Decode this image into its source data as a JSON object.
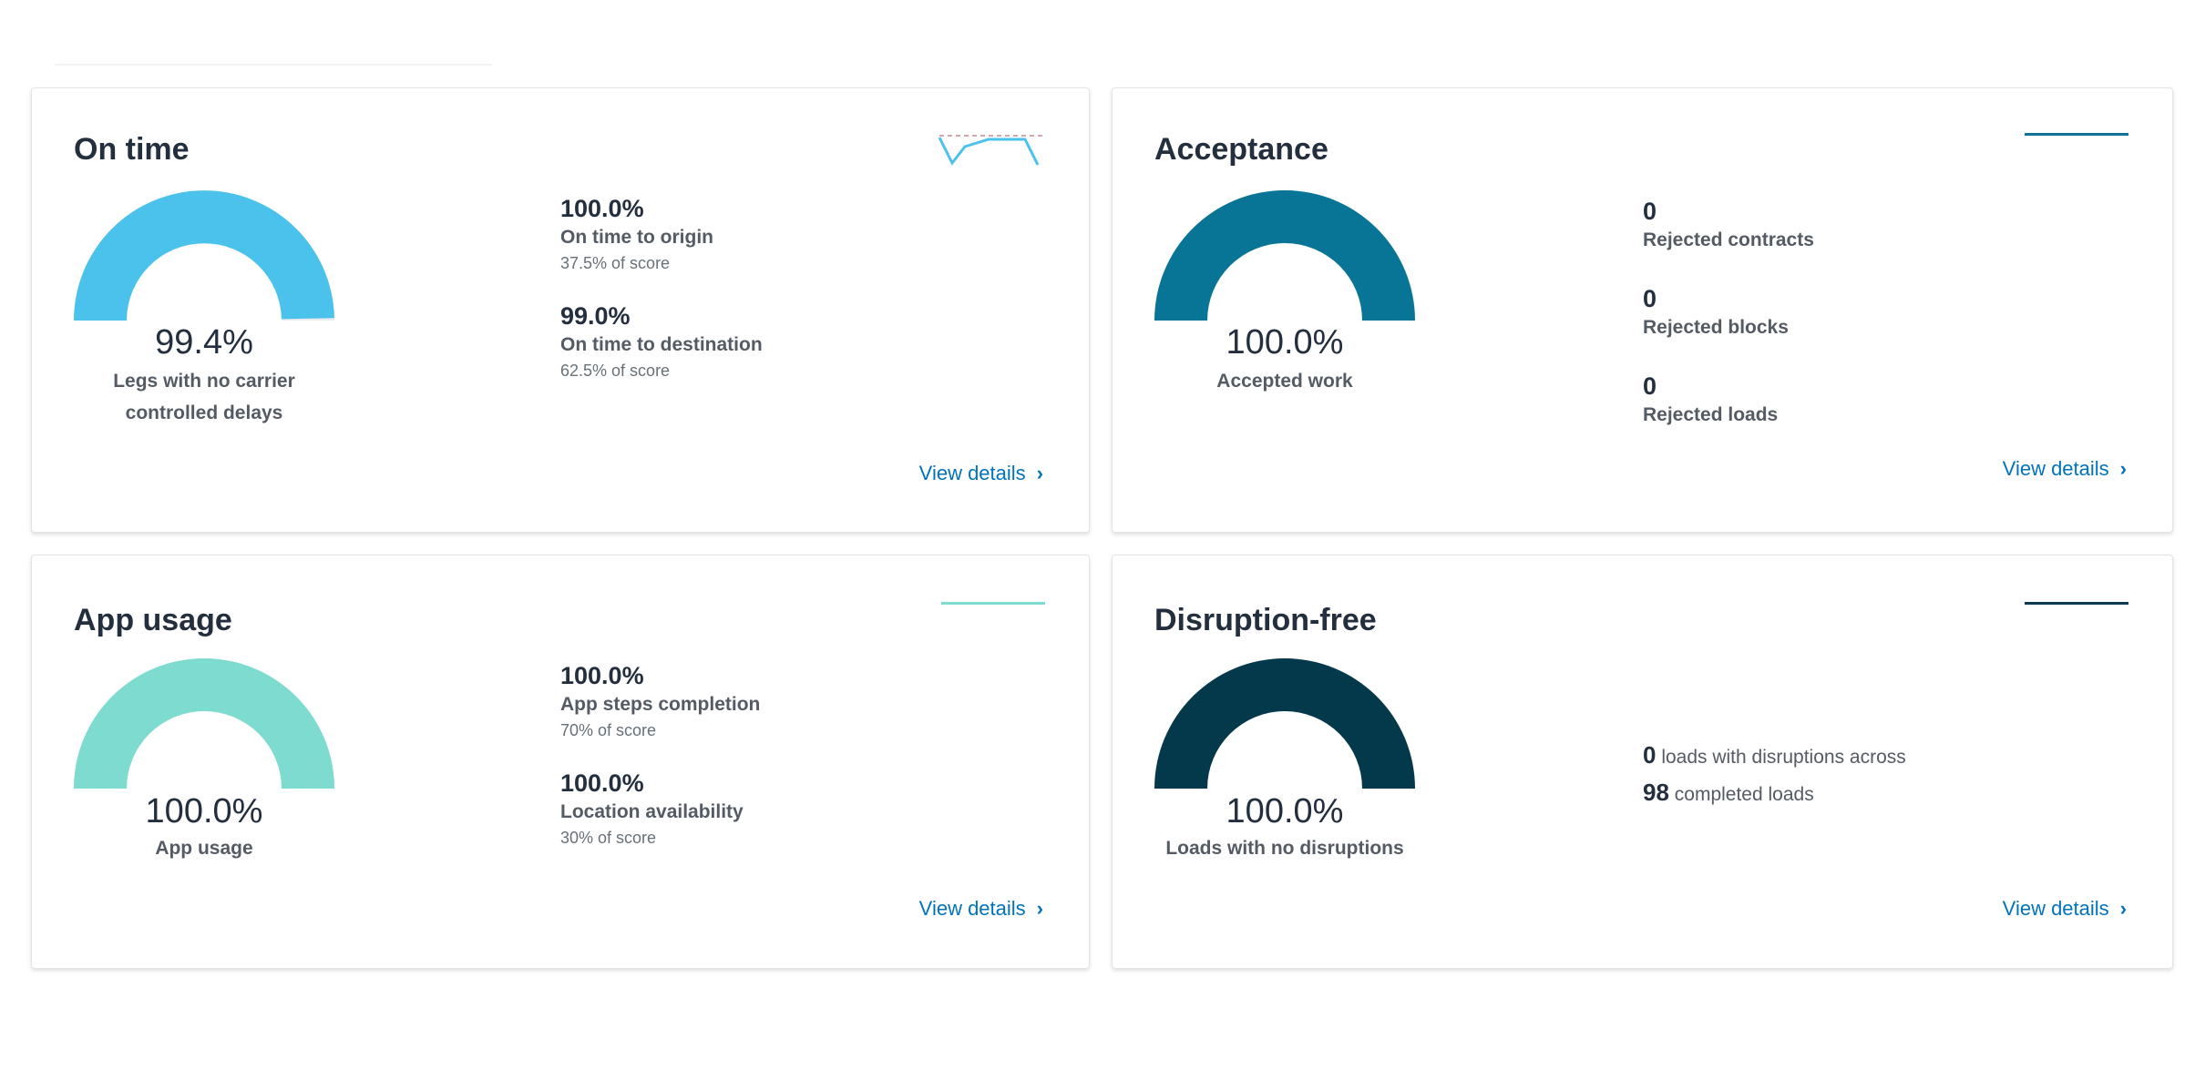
{
  "colors": {
    "on_time": "#4bc2ec",
    "acceptance": "#087596",
    "app_usage": "#7ddbcf",
    "disruption_free": "#03394a",
    "link": "#0073bb"
  },
  "cards": {
    "on_time": {
      "title": "On time",
      "gauge_value": "99.4%",
      "gauge_fraction": 0.994,
      "gauge_label": "Legs with no carrier controlled delays",
      "metrics": [
        {
          "value": "100.0%",
          "label": "On time to origin",
          "sub": "37.5% of score"
        },
        {
          "value": "99.0%",
          "label": "On time to destination",
          "sub": "62.5% of score"
        }
      ],
      "details_label": "View details"
    },
    "acceptance": {
      "title": "Acceptance",
      "gauge_value": "100.0%",
      "gauge_fraction": 1.0,
      "gauge_label": "Accepted work",
      "metrics": [
        {
          "value": "0",
          "label": "Rejected contracts"
        },
        {
          "value": "0",
          "label": "Rejected blocks"
        },
        {
          "value": "0",
          "label": "Rejected loads"
        }
      ],
      "details_label": "View details"
    },
    "app_usage": {
      "title": "App usage",
      "gauge_value": "100.0%",
      "gauge_fraction": 1.0,
      "gauge_label": "App usage",
      "metrics": [
        {
          "value": "100.0%",
          "label": "App steps completion",
          "sub": "70% of score"
        },
        {
          "value": "100.0%",
          "label": "Location availability",
          "sub": "30% of score"
        }
      ],
      "details_label": "View details"
    },
    "disruption_free": {
      "title": "Disruption-free",
      "gauge_value": "100.0%",
      "gauge_fraction": 1.0,
      "gauge_label": "Loads with no disruptions",
      "loads_with_disruptions": "0",
      "loads_with_disruptions_text": "loads with disruptions across",
      "completed_loads": "98",
      "completed_loads_text": "completed loads",
      "details_label": "View details"
    }
  }
}
